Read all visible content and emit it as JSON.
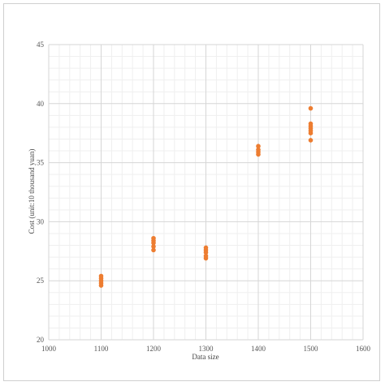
{
  "chart_data": {
    "type": "scatter",
    "title": "",
    "xlabel": "Data size",
    "ylabel": "Cost (unit:10 thousand yuan)",
    "xlim": [
      1000,
      1600
    ],
    "ylim": [
      20,
      45
    ],
    "x_ticks": [
      "1000",
      "1100",
      "1200",
      "1300",
      "1400",
      "1500",
      "1600"
    ],
    "y_ticks": [
      "20",
      "25",
      "30",
      "35",
      "40",
      "45"
    ],
    "grid": true,
    "legend": "none",
    "marker_color": "#ed7d31",
    "series": [
      {
        "points": [
          {
            "x": 1100,
            "y": 24.6
          },
          {
            "x": 1100,
            "y": 24.8
          },
          {
            "x": 1100,
            "y": 25.0
          },
          {
            "x": 1100,
            "y": 25.2
          },
          {
            "x": 1100,
            "y": 25.4
          },
          {
            "x": 1200,
            "y": 27.6
          },
          {
            "x": 1200,
            "y": 27.9
          },
          {
            "x": 1200,
            "y": 28.2
          },
          {
            "x": 1200,
            "y": 28.4
          },
          {
            "x": 1200,
            "y": 28.6
          },
          {
            "x": 1300,
            "y": 26.9
          },
          {
            "x": 1300,
            "y": 27.1
          },
          {
            "x": 1300,
            "y": 27.4
          },
          {
            "x": 1300,
            "y": 27.6
          },
          {
            "x": 1300,
            "y": 27.8
          },
          {
            "x": 1400,
            "y": 35.7
          },
          {
            "x": 1400,
            "y": 35.9
          },
          {
            "x": 1400,
            "y": 36.1
          },
          {
            "x": 1400,
            "y": 36.4
          },
          {
            "x": 1500,
            "y": 36.9
          },
          {
            "x": 1500,
            "y": 37.5
          },
          {
            "x": 1500,
            "y": 37.7
          },
          {
            "x": 1500,
            "y": 37.9
          },
          {
            "x": 1500,
            "y": 38.1
          },
          {
            "x": 1500,
            "y": 38.3
          },
          {
            "x": 1500,
            "y": 39.6
          }
        ]
      }
    ]
  }
}
